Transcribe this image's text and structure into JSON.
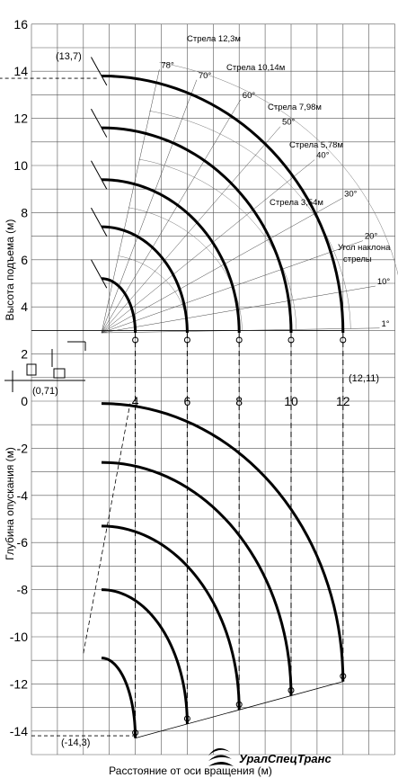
{
  "chart_data": {
    "type": "line",
    "y_axis_upper_label": "Высота подъема (м)",
    "y_axis_lower_label": "Глубина опускания (м)",
    "x_axis_label": "Расстояние от оси вращения (м)",
    "x_ticks": [
      "4",
      "6",
      "8",
      "10",
      "12"
    ],
    "x_tick_values": [
      4,
      6,
      8,
      10,
      12
    ],
    "y_ticks": [
      "16",
      "14",
      "12",
      "10",
      "8",
      "6",
      "4",
      "2",
      "0",
      "-2",
      "-4",
      "-6",
      "-8",
      "-10",
      "-12",
      "-14"
    ],
    "y_tick_values": [
      16,
      14,
      12,
      10,
      8,
      6,
      4,
      2,
      0,
      -2,
      -4,
      -6,
      -8,
      -10,
      -12,
      -14
    ],
    "xlim": [
      0,
      14
    ],
    "ylim": [
      -15,
      16
    ],
    "grid": true,
    "booms": [
      {
        "name": "Стрела 3,54м",
        "top": [
          2.7,
          5.2
        ],
        "tip": [
          4.0,
          2.9
        ],
        "bottom": [
          2.7,
          -10.9
        ],
        "low": [
          4.0,
          -14.3
        ]
      },
      {
        "name": "Стрела 5,78м",
        "top": [
          2.7,
          7.4
        ],
        "tip": [
          6.0,
          2.9
        ],
        "bottom": [
          2.7,
          -8.0
        ],
        "low": [
          6.0,
          -13.7
        ]
      },
      {
        "name": "Стрела 7,98м",
        "top": [
          2.7,
          9.4
        ],
        "tip": [
          8.0,
          2.9
        ],
        "bottom": [
          2.7,
          -5.3
        ],
        "low": [
          8.0,
          -13.1
        ]
      },
      {
        "name": "Стрела 10,14м",
        "top": [
          2.7,
          11.6
        ],
        "tip": [
          10.0,
          2.9
        ],
        "bottom": [
          2.7,
          -2.6
        ],
        "low": [
          10.0,
          -12.5
        ]
      },
      {
        "name": "Стрела 12,3м",
        "top": [
          2.7,
          13.8
        ],
        "tip": [
          12.0,
          2.9
        ],
        "bottom": [
          2.7,
          -0.1
        ],
        "low": [
          12.0,
          -11.9
        ]
      }
    ],
    "angle_labels": [
      "78°",
      "70°",
      "60°",
      "50°",
      "40°",
      "30°",
      "20°",
      "10°",
      "1°"
    ],
    "angle_values": [
      78,
      70,
      60,
      50,
      40,
      30,
      20,
      10,
      1
    ],
    "angle_caption": [
      "Угол наклона",
      "стрелы"
    ],
    "annotations": {
      "top": "(13,7)",
      "pivot": "(0,71)",
      "tip": "(12,11)",
      "bottom": "(-14,3)"
    },
    "logo_text": "УралСпецТранс"
  }
}
